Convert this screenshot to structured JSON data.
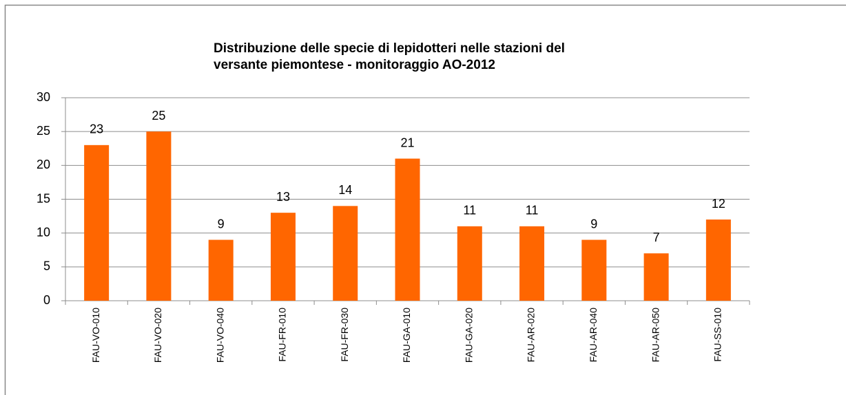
{
  "chart_data": {
    "type": "bar",
    "title": [
      "Distribuzione delle specie di lepidotteri nelle stazioni del",
      "versante piemontese - monitoraggio AO-2012"
    ],
    "categories": [
      "FAU-VO-010",
      "FAU-VO-020",
      "FAU-VO-040",
      "FAU-FR-010",
      "FAU-FR-030",
      "FAU-GA-010",
      "FAU-GA-020",
      "FAU-AR-020",
      "FAU-AR-040",
      "FAU-AR-050",
      "FAU-SS-010"
    ],
    "values": [
      23,
      25,
      9,
      13,
      14,
      21,
      11,
      11,
      9,
      7,
      12
    ],
    "color": "#ff6600",
    "ylim": [
      0,
      30
    ],
    "yticks": [
      0,
      5,
      10,
      15,
      20,
      25,
      30
    ],
    "grid": true
  }
}
